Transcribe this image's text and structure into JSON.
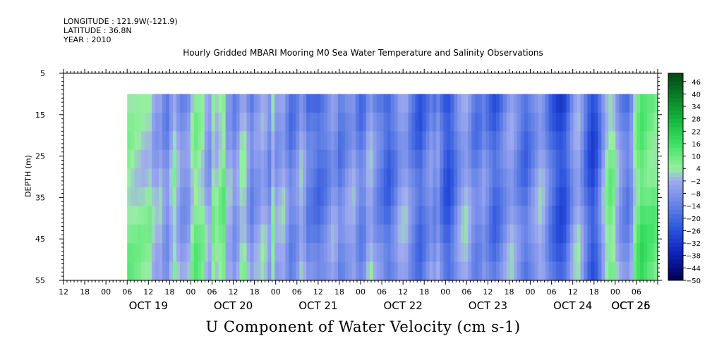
{
  "meta": {
    "longitude": "LONGITUDE : 121.9W(-121.9)",
    "latitude": "LATITUDE : 36.8N",
    "year": "YEAR : 2010"
  },
  "chart_data": {
    "type": "heatmap",
    "title": "Hourly Gridded MBARI Mooring M0 Sea Water Temperature and Salinity Observations",
    "variable_label": "U Component of Water Velocity (cm s-1)",
    "ylabel": "DEPTH (m)",
    "ylim": [
      55,
      5
    ],
    "y_ticks": [
      5,
      15,
      25,
      35,
      45,
      55
    ],
    "data_depth_range": [
      10,
      55
    ],
    "time_range_hours": [
      -12,
      156
    ],
    "data_start_hour": 6,
    "x_hour_ticks": [
      "12",
      "18",
      "00",
      "06",
      "12",
      "18",
      "00",
      "06",
      "12",
      "18",
      "00",
      "06",
      "12",
      "18",
      "00",
      "06",
      "12",
      "18",
      "00",
      "06",
      "12",
      "18",
      "00",
      "06",
      "12",
      "18",
      "00",
      "06"
    ],
    "x_day_labels": [
      "OCT 19",
      "OCT 20",
      "OCT 21",
      "OCT 22",
      "OCT 23",
      "OCT 24",
      "OCT 25",
      "OCT 26"
    ],
    "colorbar": {
      "levels": [
        46,
        40,
        34,
        28,
        22,
        16,
        10,
        4,
        -2,
        -8,
        -14,
        -20,
        -26,
        -32,
        -38,
        -44,
        -50
      ],
      "range": [
        -50,
        50
      ]
    },
    "column_values": [
      6,
      5,
      4,
      4,
      3,
      3,
      4,
      -2,
      -4,
      -2,
      -8,
      -10,
      -2,
      4,
      -3,
      -8,
      -8,
      -6,
      3,
      8,
      6,
      4,
      -3,
      -6,
      5,
      2,
      6,
      9,
      -3,
      -3,
      -9,
      -5,
      2,
      2,
      -6,
      -12,
      -7,
      -6,
      -2,
      -4,
      -10,
      2,
      -6,
      -4,
      -2,
      -8,
      -14,
      -12,
      -8,
      -2,
      -6,
      -14,
      -14,
      -16,
      -18,
      -16,
      -14,
      -10,
      -6,
      -8,
      -14,
      -12,
      -8,
      -6,
      -4,
      -10,
      -14,
      -12,
      -4,
      -2,
      -8,
      -12,
      -14,
      -18,
      -20,
      -16,
      -12,
      -6,
      -4,
      -4,
      -10,
      -14,
      -18,
      -20,
      -16,
      -12,
      -8,
      -12,
      -8,
      -16,
      -22,
      -24,
      -20,
      -14,
      -8,
      -4,
      -2,
      -6,
      -12,
      -14,
      -12,
      -8,
      -12,
      -16,
      -20,
      -18,
      -14,
      -10,
      -6,
      -4,
      -8,
      -12,
      -16,
      -18,
      -14,
      -10,
      -6,
      -2,
      -4,
      -10,
      -16,
      -20,
      -24,
      -26,
      -24,
      -18,
      -10,
      -4,
      -2,
      -8,
      -16,
      -22,
      -26,
      -22,
      -14,
      -4,
      4,
      8,
      6,
      -2,
      -8,
      -12,
      -14,
      -8,
      4,
      10,
      14,
      12,
      10,
      10,
      8
    ]
  }
}
